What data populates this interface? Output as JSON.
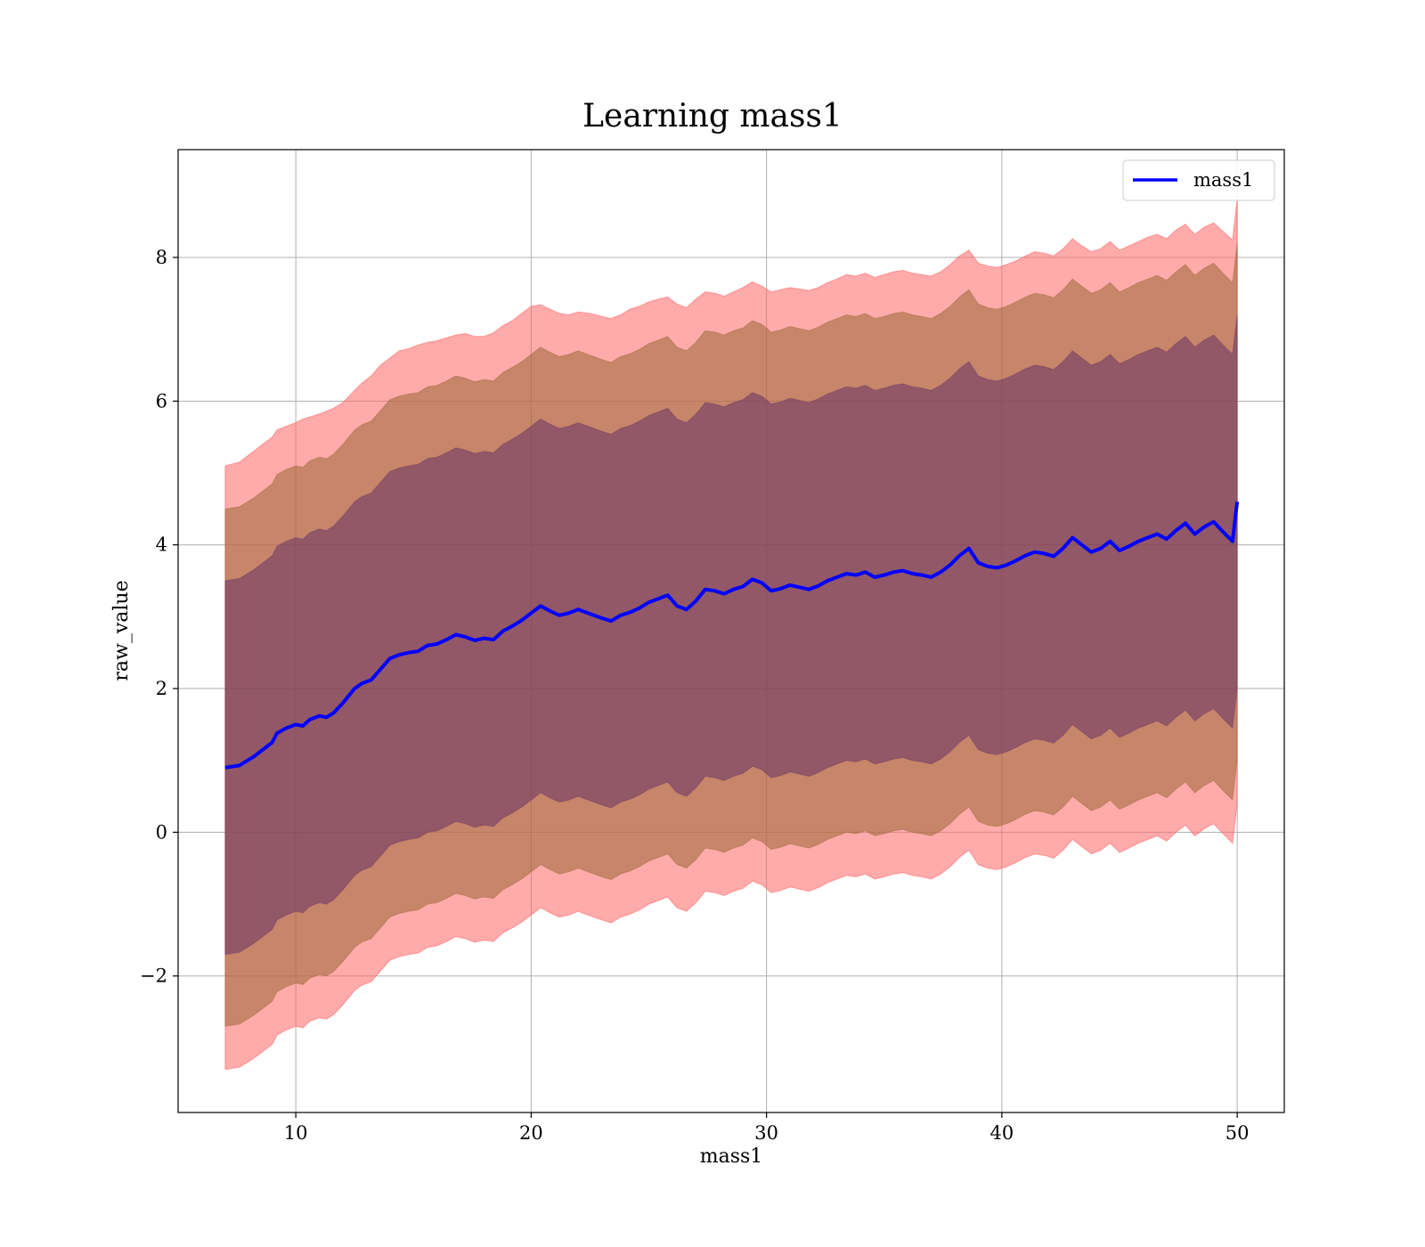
{
  "chart_data": {
    "type": "line",
    "title": "Learning mass1",
    "xlabel": "mass1",
    "ylabel": "raw_value",
    "xlim": [
      5,
      52
    ],
    "ylim": [
      -3.9,
      9.5
    ],
    "xticks": [
      10,
      20,
      30,
      40,
      50
    ],
    "yticks": [
      -2,
      0,
      2,
      4,
      6,
      8
    ],
    "xtick_labels": [
      "10",
      "20",
      "30",
      "40",
      "50"
    ],
    "ytick_labels": [
      "−2",
      "0",
      "2",
      "4",
      "6",
      "8"
    ],
    "grid": true,
    "legend": {
      "position": "top-right",
      "entries": [
        "mass1"
      ]
    },
    "colors": {
      "line": "#0000ff",
      "band_outer": "#ff6666",
      "band_middle": "#996633",
      "band_inner": "#663366",
      "grid": "#b0b0b0"
    },
    "series": [
      {
        "name": "mass1",
        "x": [
          7.0,
          7.6,
          8.2,
          9.0,
          9.2,
          9.6,
          10.0,
          10.3,
          10.6,
          11.0,
          11.3,
          11.6,
          12.0,
          12.5,
          12.8,
          13.2,
          13.6,
          14.0,
          14.4,
          14.8,
          15.2,
          15.6,
          16.0,
          16.4,
          16.8,
          17.2,
          17.6,
          18.0,
          18.4,
          18.8,
          19.2,
          19.6,
          20.0,
          20.4,
          20.8,
          21.2,
          21.6,
          22.0,
          22.5,
          23.0,
          23.4,
          23.8,
          24.2,
          24.6,
          25.0,
          25.4,
          25.8,
          26.2,
          26.6,
          27.0,
          27.4,
          27.8,
          28.2,
          28.6,
          29.0,
          29.4,
          29.8,
          30.2,
          30.6,
          31.0,
          31.4,
          31.8,
          32.2,
          32.6,
          33.0,
          33.4,
          33.8,
          34.2,
          34.6,
          35.0,
          35.4,
          35.8,
          36.2,
          36.6,
          37.0,
          37.4,
          37.8,
          38.2,
          38.6,
          39.0,
          39.4,
          39.8,
          40.2,
          40.6,
          41.0,
          41.4,
          41.8,
          42.2,
          42.6,
          43.0,
          43.4,
          43.8,
          44.2,
          44.6,
          45.0,
          45.4,
          45.8,
          46.2,
          46.6,
          47.0,
          47.4,
          47.8,
          48.2,
          48.6,
          49.0,
          49.4,
          49.8,
          50.0
        ],
        "y": [
          0.9,
          0.93,
          1.05,
          1.25,
          1.38,
          1.45,
          1.5,
          1.48,
          1.57,
          1.62,
          1.6,
          1.66,
          1.8,
          2.0,
          2.07,
          2.12,
          2.27,
          2.42,
          2.47,
          2.5,
          2.52,
          2.6,
          2.62,
          2.68,
          2.75,
          2.72,
          2.67,
          2.7,
          2.68,
          2.8,
          2.87,
          2.95,
          3.05,
          3.15,
          3.08,
          3.02,
          3.05,
          3.1,
          3.04,
          2.98,
          2.94,
          3.02,
          3.06,
          3.12,
          3.2,
          3.25,
          3.3,
          3.15,
          3.1,
          3.22,
          3.38,
          3.36,
          3.32,
          3.38,
          3.42,
          3.52,
          3.47,
          3.36,
          3.39,
          3.44,
          3.41,
          3.38,
          3.43,
          3.5,
          3.55,
          3.6,
          3.58,
          3.62,
          3.55,
          3.58,
          3.62,
          3.64,
          3.6,
          3.58,
          3.55,
          3.62,
          3.72,
          3.85,
          3.95,
          3.75,
          3.7,
          3.68,
          3.72,
          3.78,
          3.85,
          3.9,
          3.88,
          3.84,
          3.95,
          4.1,
          4.0,
          3.9,
          3.95,
          4.05,
          3.92,
          3.98,
          4.05,
          4.1,
          4.15,
          4.08,
          4.2,
          4.3,
          4.15,
          4.25,
          4.32,
          4.18,
          4.05,
          4.6
        ],
        "band_outer_upper": [
          5.1,
          5.15,
          5.3,
          5.5,
          5.6,
          5.65,
          5.7,
          5.75,
          5.78,
          5.82,
          5.86,
          5.9,
          5.98,
          6.15,
          6.25,
          6.35,
          6.5,
          6.6,
          6.7,
          6.73,
          6.78,
          6.82,
          6.84,
          6.88,
          6.92,
          6.94,
          6.9,
          6.9,
          6.95,
          7.05,
          7.12,
          7.22,
          7.32,
          7.34,
          7.28,
          7.22,
          7.2,
          7.24,
          7.22,
          7.18,
          7.15,
          7.2,
          7.28,
          7.32,
          7.38,
          7.42,
          7.45,
          7.35,
          7.3,
          7.42,
          7.52,
          7.5,
          7.46,
          7.52,
          7.58,
          7.66,
          7.6,
          7.52,
          7.55,
          7.58,
          7.56,
          7.54,
          7.58,
          7.65,
          7.7,
          7.76,
          7.74,
          7.78,
          7.72,
          7.76,
          7.8,
          7.82,
          7.78,
          7.76,
          7.74,
          7.8,
          7.9,
          8.02,
          8.1,
          7.92,
          7.88,
          7.86,
          7.9,
          7.95,
          8.02,
          8.08,
          8.06,
          8.02,
          8.12,
          8.26,
          8.16,
          8.08,
          8.12,
          8.22,
          8.1,
          8.16,
          8.22,
          8.28,
          8.32,
          8.26,
          8.38,
          8.46,
          8.32,
          8.42,
          8.48,
          8.36,
          8.24,
          8.8
        ],
        "band_outer_lower": [
          -3.3,
          -3.27,
          -3.15,
          -2.95,
          -2.82,
          -2.75,
          -2.7,
          -2.72,
          -2.63,
          -2.58,
          -2.6,
          -2.54,
          -2.4,
          -2.2,
          -2.13,
          -2.08,
          -1.93,
          -1.78,
          -1.73,
          -1.7,
          -1.68,
          -1.6,
          -1.58,
          -1.52,
          -1.45,
          -1.48,
          -1.53,
          -1.5,
          -1.52,
          -1.4,
          -1.33,
          -1.25,
          -1.15,
          -1.05,
          -1.12,
          -1.18,
          -1.15,
          -1.1,
          -1.16,
          -1.22,
          -1.26,
          -1.18,
          -1.14,
          -1.08,
          -1.0,
          -0.95,
          -0.9,
          -1.05,
          -1.1,
          -0.98,
          -0.82,
          -0.84,
          -0.88,
          -0.82,
          -0.78,
          -0.68,
          -0.73,
          -0.84,
          -0.81,
          -0.76,
          -0.79,
          -0.82,
          -0.77,
          -0.7,
          -0.65,
          -0.6,
          -0.62,
          -0.58,
          -0.65,
          -0.62,
          -0.58,
          -0.56,
          -0.6,
          -0.62,
          -0.65,
          -0.58,
          -0.48,
          -0.35,
          -0.25,
          -0.45,
          -0.5,
          -0.52,
          -0.48,
          -0.42,
          -0.35,
          -0.3,
          -0.32,
          -0.36,
          -0.25,
          -0.1,
          -0.2,
          -0.3,
          -0.25,
          -0.15,
          -0.28,
          -0.22,
          -0.15,
          -0.1,
          -0.05,
          -0.12,
          0.0,
          0.1,
          -0.05,
          0.05,
          0.12,
          -0.02,
          -0.15,
          0.4
        ],
        "band_middle_upper": [
          4.5,
          4.53,
          4.65,
          4.85,
          4.98,
          5.05,
          5.1,
          5.08,
          5.17,
          5.22,
          5.2,
          5.26,
          5.4,
          5.6,
          5.67,
          5.72,
          5.87,
          6.02,
          6.07,
          6.1,
          6.12,
          6.2,
          6.22,
          6.28,
          6.35,
          6.32,
          6.27,
          6.3,
          6.28,
          6.4,
          6.47,
          6.55,
          6.65,
          6.75,
          6.68,
          6.62,
          6.65,
          6.7,
          6.64,
          6.58,
          6.54,
          6.62,
          6.66,
          6.72,
          6.8,
          6.85,
          6.9,
          6.75,
          6.7,
          6.82,
          6.98,
          6.96,
          6.92,
          6.98,
          7.02,
          7.12,
          7.07,
          6.96,
          6.99,
          7.04,
          7.01,
          6.98,
          7.03,
          7.1,
          7.15,
          7.2,
          7.18,
          7.22,
          7.15,
          7.18,
          7.22,
          7.24,
          7.2,
          7.18,
          7.15,
          7.22,
          7.32,
          7.45,
          7.55,
          7.35,
          7.3,
          7.28,
          7.32,
          7.38,
          7.45,
          7.5,
          7.48,
          7.44,
          7.55,
          7.7,
          7.6,
          7.5,
          7.55,
          7.65,
          7.52,
          7.58,
          7.65,
          7.7,
          7.75,
          7.68,
          7.8,
          7.9,
          7.75,
          7.85,
          7.92,
          7.78,
          7.65,
          8.2
        ],
        "band_middle_lower": [
          -2.7,
          -2.67,
          -2.55,
          -2.35,
          -2.22,
          -2.15,
          -2.1,
          -2.12,
          -2.03,
          -1.98,
          -2.0,
          -1.94,
          -1.8,
          -1.6,
          -1.53,
          -1.48,
          -1.33,
          -1.18,
          -1.13,
          -1.1,
          -1.08,
          -1.0,
          -0.98,
          -0.92,
          -0.85,
          -0.88,
          -0.93,
          -0.9,
          -0.92,
          -0.8,
          -0.73,
          -0.65,
          -0.55,
          -0.45,
          -0.52,
          -0.58,
          -0.55,
          -0.5,
          -0.56,
          -0.62,
          -0.66,
          -0.58,
          -0.54,
          -0.48,
          -0.4,
          -0.35,
          -0.3,
          -0.45,
          -0.5,
          -0.38,
          -0.22,
          -0.24,
          -0.28,
          -0.22,
          -0.18,
          -0.08,
          -0.13,
          -0.24,
          -0.21,
          -0.16,
          -0.19,
          -0.22,
          -0.17,
          -0.1,
          -0.05,
          0.0,
          -0.02,
          0.02,
          -0.05,
          -0.02,
          0.02,
          0.04,
          0.0,
          -0.02,
          -0.05,
          0.02,
          0.12,
          0.25,
          0.35,
          0.15,
          0.1,
          0.08,
          0.12,
          0.18,
          0.25,
          0.3,
          0.28,
          0.24,
          0.35,
          0.5,
          0.4,
          0.3,
          0.35,
          0.45,
          0.32,
          0.38,
          0.45,
          0.5,
          0.55,
          0.48,
          0.6,
          0.7,
          0.55,
          0.65,
          0.72,
          0.58,
          0.45,
          1.0
        ],
        "band_inner_upper": [
          3.5,
          3.53,
          3.65,
          3.85,
          3.98,
          4.05,
          4.1,
          4.08,
          4.17,
          4.22,
          4.2,
          4.26,
          4.4,
          4.6,
          4.67,
          4.72,
          4.87,
          5.02,
          5.07,
          5.1,
          5.12,
          5.2,
          5.22,
          5.28,
          5.35,
          5.32,
          5.27,
          5.3,
          5.28,
          5.4,
          5.47,
          5.55,
          5.65,
          5.75,
          5.68,
          5.62,
          5.65,
          5.7,
          5.64,
          5.58,
          5.54,
          5.62,
          5.66,
          5.72,
          5.8,
          5.85,
          5.9,
          5.75,
          5.7,
          5.82,
          5.98,
          5.96,
          5.92,
          5.98,
          6.02,
          6.12,
          6.07,
          5.96,
          5.99,
          6.04,
          6.01,
          5.98,
          6.03,
          6.1,
          6.15,
          6.2,
          6.18,
          6.22,
          6.15,
          6.18,
          6.22,
          6.24,
          6.2,
          6.18,
          6.15,
          6.22,
          6.32,
          6.45,
          6.55,
          6.35,
          6.3,
          6.28,
          6.32,
          6.38,
          6.45,
          6.5,
          6.48,
          6.44,
          6.55,
          6.7,
          6.6,
          6.5,
          6.55,
          6.65,
          6.52,
          6.58,
          6.65,
          6.7,
          6.75,
          6.68,
          6.8,
          6.9,
          6.75,
          6.85,
          6.92,
          6.78,
          6.65,
          7.2
        ],
        "band_inner_lower": [
          -1.7,
          -1.67,
          -1.55,
          -1.35,
          -1.22,
          -1.15,
          -1.1,
          -1.12,
          -1.03,
          -0.98,
          -1.0,
          -0.94,
          -0.8,
          -0.6,
          -0.53,
          -0.48,
          -0.33,
          -0.18,
          -0.13,
          -0.1,
          -0.08,
          0.0,
          0.02,
          0.08,
          0.15,
          0.12,
          0.07,
          0.1,
          0.08,
          0.2,
          0.27,
          0.35,
          0.45,
          0.55,
          0.48,
          0.42,
          0.45,
          0.5,
          0.44,
          0.38,
          0.34,
          0.42,
          0.46,
          0.52,
          0.6,
          0.65,
          0.7,
          0.55,
          0.5,
          0.62,
          0.78,
          0.76,
          0.72,
          0.78,
          0.82,
          0.92,
          0.87,
          0.76,
          0.79,
          0.84,
          0.81,
          0.78,
          0.83,
          0.9,
          0.95,
          1.0,
          0.98,
          1.02,
          0.95,
          0.98,
          1.02,
          1.04,
          1.0,
          0.98,
          0.95,
          1.02,
          1.12,
          1.25,
          1.35,
          1.15,
          1.1,
          1.08,
          1.12,
          1.18,
          1.25,
          1.3,
          1.28,
          1.24,
          1.35,
          1.5,
          1.4,
          1.3,
          1.35,
          1.45,
          1.32,
          1.38,
          1.45,
          1.5,
          1.55,
          1.48,
          1.6,
          1.7,
          1.55,
          1.65,
          1.72,
          1.58,
          1.45,
          2.0
        ]
      }
    ]
  }
}
